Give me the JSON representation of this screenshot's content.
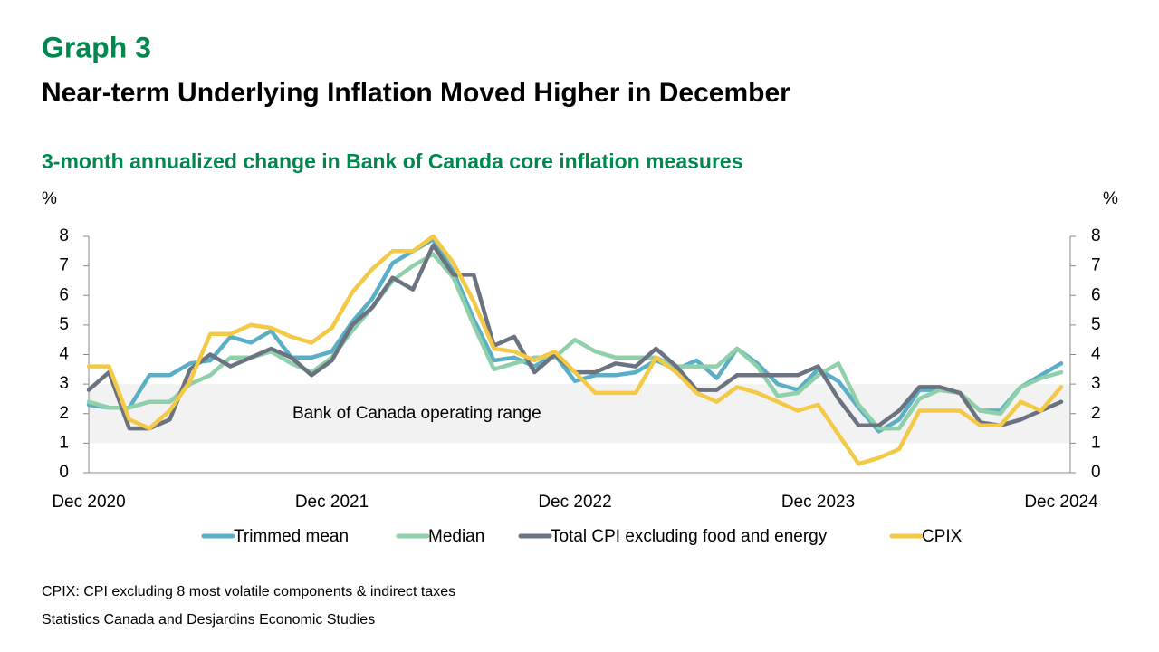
{
  "chart_data": {
    "type": "line",
    "graph_label": "Graph 3",
    "title": "Near-term Underlying Inflation Moved Higher in December",
    "subtitle": "3-month annualized change in Bank of Canada core inflation measures",
    "y_label": "%",
    "y2_label": "%",
    "categories": [
      "Dec 2020",
      null,
      null,
      null,
      null,
      null,
      null,
      null,
      null,
      null,
      null,
      null,
      "Dec 2021",
      null,
      null,
      null,
      null,
      null,
      null,
      null,
      null,
      null,
      null,
      null,
      "Dec 2022",
      null,
      null,
      null,
      null,
      null,
      null,
      null,
      null,
      null,
      null,
      null,
      "Dec 2023",
      null,
      null,
      null,
      null,
      null,
      null,
      null,
      null,
      null,
      null,
      null,
      "Dec 2024"
    ],
    "series": [
      {
        "name": "Trimmed mean",
        "color": "#5aaec6",
        "values": [
          2.3,
          2.2,
          2.2,
          3.3,
          3.3,
          3.7,
          3.8,
          4.6,
          4.4,
          4.8,
          3.9,
          3.9,
          4.1,
          5.1,
          5.9,
          7.1,
          7.5,
          7.9,
          6.8,
          5.2,
          3.8,
          3.9,
          3.6,
          4.0,
          3.1,
          3.3,
          3.3,
          3.4,
          3.8,
          3.5,
          3.8,
          3.2,
          4.2,
          3.7,
          3.0,
          2.8,
          3.5,
          3.1,
          2.2,
          1.4,
          1.8,
          2.8,
          2.8,
          2.7,
          2.1,
          2.1,
          2.9,
          3.3,
          3.7
        ]
      },
      {
        "name": "Median",
        "color": "#8fcfa9",
        "values": [
          2.4,
          2.2,
          2.2,
          2.4,
          2.4,
          3.0,
          3.3,
          3.9,
          3.9,
          4.1,
          3.7,
          3.4,
          3.9,
          4.8,
          5.6,
          6.5,
          7.0,
          7.4,
          6.6,
          5.0,
          3.5,
          3.7,
          3.9,
          3.9,
          4.5,
          4.1,
          3.9,
          3.9,
          3.9,
          3.6,
          3.6,
          3.6,
          4.2,
          3.6,
          2.6,
          2.7,
          3.3,
          3.7,
          2.3,
          1.5,
          1.5,
          2.5,
          2.8,
          2.7,
          2.1,
          2.0,
          2.9,
          3.2,
          3.4
        ]
      },
      {
        "name": "Total CPI excluding food and energy",
        "color": "#6b7380",
        "values": [
          2.8,
          3.4,
          1.5,
          1.5,
          1.8,
          3.5,
          4.0,
          3.6,
          3.9,
          4.2,
          3.9,
          3.3,
          3.8,
          5.0,
          5.6,
          6.6,
          6.2,
          7.7,
          6.7,
          6.7,
          4.3,
          4.6,
          3.4,
          4.0,
          3.4,
          3.4,
          3.7,
          3.6,
          4.2,
          3.6,
          2.8,
          2.8,
          3.3,
          3.3,
          3.3,
          3.3,
          3.6,
          2.5,
          1.6,
          1.6,
          2.1,
          2.9,
          2.9,
          2.7,
          1.7,
          1.6,
          1.8,
          2.1,
          2.4
        ]
      },
      {
        "name": "CPIX",
        "color": "#f4c945",
        "values": [
          3.6,
          3.6,
          1.8,
          1.5,
          2.1,
          3.1,
          4.7,
          4.7,
          5.0,
          4.9,
          4.6,
          4.4,
          4.9,
          6.1,
          6.9,
          7.5,
          7.5,
          8.0,
          7.1,
          5.8,
          4.2,
          4.1,
          3.8,
          4.1,
          3.4,
          2.7,
          2.7,
          2.7,
          3.9,
          3.4,
          2.7,
          2.4,
          2.9,
          2.7,
          2.4,
          2.1,
          2.3,
          1.3,
          0.3,
          0.5,
          0.8,
          2.1,
          2.1,
          2.1,
          1.6,
          1.6,
          2.4,
          2.1,
          2.9
        ]
      }
    ],
    "ylim": [
      0,
      8
    ],
    "yticks": [
      0,
      1,
      2,
      3,
      4,
      5,
      6,
      7,
      8
    ],
    "y2lim": [
      0,
      8
    ],
    "y2ticks": [
      0,
      1,
      2,
      3,
      4,
      5,
      6,
      7,
      8
    ],
    "annotations": [
      {
        "text": "Bank of Canada operating range",
        "y_range": [
          1,
          3
        ],
        "color": "#f2f2f2"
      }
    ],
    "legend": "bottom",
    "footnotes": [
      "CPIX: CPI excluding 8 most volatile components & indirect taxes",
      "Statistics Canada and Desjardins Economic Studies"
    ]
  }
}
